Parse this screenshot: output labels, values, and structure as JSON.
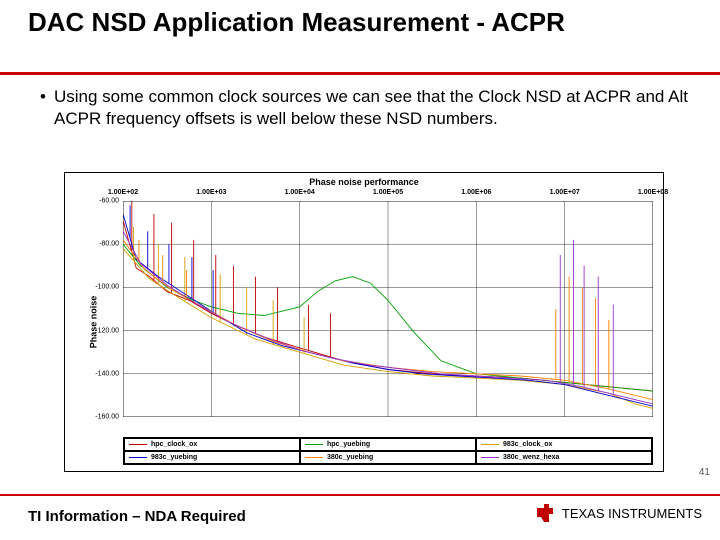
{
  "title": "DAC NSD Application Measurement - ACPR",
  "bullet": "Using some common clock sources we can see that the Clock NSD at ACPR and Alt ACPR frequency offsets is well below these NSD numbers.",
  "chart": {
    "title": "Phase noise performance",
    "ylabel": "Phase noise",
    "type": "line-log-x",
    "background_color": "#ffffff",
    "grid_color": "#000000",
    "xlim_log10": [
      2,
      8
    ],
    "x_ticks_log10": [
      2,
      3,
      4,
      5,
      6,
      7,
      8
    ],
    "x_tick_labels": [
      "1.00E+02",
      "1.00E+03",
      "1.00E+04",
      "1.00E+05",
      "1.00E+06",
      "1.00E+07",
      "1.00E+08"
    ],
    "ylim": [
      -160,
      -60
    ],
    "y_ticks": [
      -60,
      -80,
      -100,
      -120,
      -140,
      -160
    ],
    "y_tick_labels": [
      "-60.00",
      "-80.00",
      "-100.00",
      "-120.00",
      "-140.00",
      "-160.00"
    ],
    "series": [
      {
        "name": "hpc_clock_ox",
        "color": "#c00000",
        "points": [
          [
            2,
            -69
          ],
          [
            2.15,
            -91
          ],
          [
            2.3,
            -95
          ],
          [
            2.5,
            -102
          ],
          [
            2.75,
            -106
          ],
          [
            3,
            -112
          ],
          [
            3.3,
            -118
          ],
          [
            3.6,
            -123
          ],
          [
            4,
            -128
          ],
          [
            4.5,
            -134
          ],
          [
            5,
            -138
          ],
          [
            5.5,
            -140
          ],
          [
            6,
            -141
          ],
          [
            6.5,
            -142
          ],
          [
            7,
            -144
          ],
          [
            7.5,
            -146
          ],
          [
            8,
            -148
          ]
        ],
        "spikes": [
          [
            2.1,
            -60
          ],
          [
            2.35,
            -66
          ],
          [
            2.55,
            -70
          ],
          [
            2.8,
            -78
          ],
          [
            3.05,
            -85
          ],
          [
            3.25,
            -90
          ],
          [
            3.5,
            -95
          ],
          [
            3.75,
            -100
          ],
          [
            4.1,
            -108
          ],
          [
            4.35,
            -112
          ]
        ]
      },
      {
        "name": "hpc_yuebing",
        "color": "#00a000",
        "points": [
          [
            2,
            -80
          ],
          [
            2.2,
            -90
          ],
          [
            2.5,
            -100
          ],
          [
            2.8,
            -106
          ],
          [
            3,
            -109
          ],
          [
            3.3,
            -112
          ],
          [
            3.6,
            -113
          ],
          [
            4,
            -109
          ],
          [
            4.2,
            -102
          ],
          [
            4.4,
            -97
          ],
          [
            4.6,
            -95
          ],
          [
            4.8,
            -98
          ],
          [
            5,
            -106
          ],
          [
            5.3,
            -121
          ],
          [
            5.6,
            -134
          ],
          [
            6,
            -140
          ],
          [
            6.5,
            -142
          ],
          [
            7,
            -144
          ],
          [
            7.5,
            -146
          ],
          [
            8,
            -148
          ]
        ],
        "spikes": []
      },
      {
        "name": "983c_clock_ox",
        "color": "#d4a000",
        "points": [
          [
            2,
            -82
          ],
          [
            2.3,
            -96
          ],
          [
            2.6,
            -104
          ],
          [
            3,
            -114
          ],
          [
            3.5,
            -124
          ],
          [
            4,
            -130
          ],
          [
            4.5,
            -136
          ],
          [
            5,
            -139
          ],
          [
            5.5,
            -141
          ],
          [
            6,
            -142
          ],
          [
            6.5,
            -143
          ],
          [
            7,
            -145
          ],
          [
            7.5,
            -149
          ],
          [
            7.8,
            -154
          ],
          [
            8,
            -156
          ]
        ],
        "spikes": [
          [
            2.12,
            -72
          ],
          [
            2.4,
            -80
          ],
          [
            2.7,
            -86
          ],
          [
            3.1,
            -94
          ],
          [
            3.4,
            -100
          ],
          [
            3.7,
            -106
          ],
          [
            4.05,
            -114
          ]
        ]
      },
      {
        "name": "983c_yuebing",
        "color": "#0000d0",
        "points": [
          [
            2,
            -66
          ],
          [
            2.15,
            -87
          ],
          [
            2.4,
            -95
          ],
          [
            2.7,
            -103
          ],
          [
            3,
            -111
          ],
          [
            3.4,
            -121
          ],
          [
            3.8,
            -127
          ],
          [
            4.2,
            -131
          ],
          [
            4.6,
            -135
          ],
          [
            5,
            -138
          ],
          [
            5.4,
            -140
          ],
          [
            5.8,
            -141
          ],
          [
            6.2,
            -142
          ],
          [
            6.6,
            -143
          ],
          [
            7,
            -145
          ],
          [
            7.5,
            -150
          ],
          [
            8,
            -155
          ]
        ],
        "spikes": [
          [
            2.08,
            -62
          ],
          [
            2.28,
            -74
          ],
          [
            2.52,
            -80
          ],
          [
            2.78,
            -86
          ],
          [
            3.02,
            -92
          ]
        ]
      },
      {
        "name": "380c_yuebing",
        "color": "#ff8000",
        "points": [
          [
            2,
            -78
          ],
          [
            2.25,
            -92
          ],
          [
            2.55,
            -101
          ],
          [
            2.9,
            -109
          ],
          [
            3.3,
            -118
          ],
          [
            3.7,
            -125
          ],
          [
            4.1,
            -130
          ],
          [
            4.5,
            -134
          ],
          [
            5,
            -137
          ],
          [
            5.5,
            -139
          ],
          [
            6,
            -140
          ],
          [
            6.5,
            -141
          ],
          [
            7,
            -143
          ],
          [
            7.5,
            -147
          ],
          [
            8,
            -152
          ]
        ],
        "spikes": [
          [
            2.18,
            -78
          ],
          [
            2.45,
            -85
          ],
          [
            2.72,
            -92
          ],
          [
            6.9,
            -110
          ],
          [
            7.05,
            -95
          ],
          [
            7.2,
            -100
          ],
          [
            7.35,
            -105
          ],
          [
            7.5,
            -115
          ]
        ]
      },
      {
        "name": "380c_wenz_hexa",
        "color": "#9932cc",
        "points": [
          [
            2,
            -74
          ],
          [
            2.2,
            -89
          ],
          [
            2.5,
            -99
          ],
          [
            2.85,
            -108
          ],
          [
            3.2,
            -116
          ],
          [
            3.6,
            -123
          ],
          [
            4,
            -129
          ],
          [
            4.4,
            -133
          ],
          [
            4.8,
            -136
          ],
          [
            5.2,
            -138
          ],
          [
            5.6,
            -140
          ],
          [
            6,
            -141
          ],
          [
            6.4,
            -142
          ],
          [
            6.8,
            -143
          ],
          [
            7.2,
            -146
          ],
          [
            7.6,
            -150
          ],
          [
            8,
            -154
          ]
        ],
        "spikes": [
          [
            6.95,
            -85
          ],
          [
            7.1,
            -78
          ],
          [
            7.22,
            -90
          ],
          [
            7.38,
            -95
          ],
          [
            7.55,
            -108
          ]
        ]
      }
    ],
    "line_width": 0.9
  },
  "legend": [
    {
      "label": "hpc_clock_ox",
      "color": "#c00000"
    },
    {
      "label": "hpc_yuebing",
      "color": "#00a000"
    },
    {
      "label": "983c_clock_ox",
      "color": "#d4a000"
    },
    {
      "label": "983c_yuebing",
      "color": "#0000d0"
    },
    {
      "label": "380c_yuebing",
      "color": "#ff8000"
    },
    {
      "label": "380c_wenz_hexa",
      "color": "#9932cc"
    }
  ],
  "page_number": "41",
  "footer": "TI Information – NDA Required",
  "logo": {
    "text": "TEXAS INSTRUMENTS",
    "chip_color": "#c00000"
  }
}
